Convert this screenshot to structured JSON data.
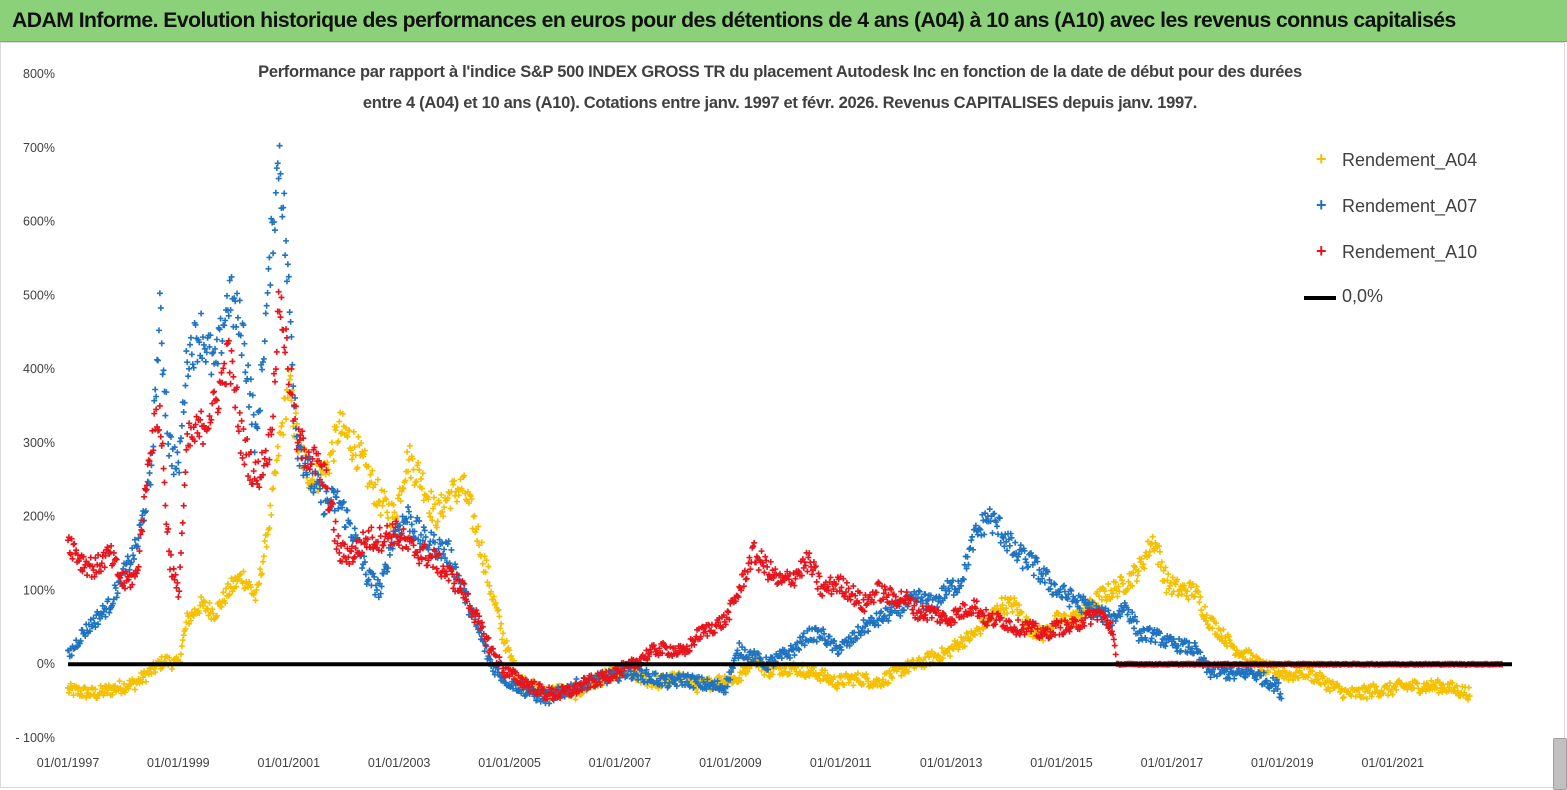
{
  "banner": {
    "title": "ADAM Informe. Evolution historique des performances en euros pour des détentions de 4 ans (A04) à 10 ans (A10) avec les revenus connus capitalisés"
  },
  "colors": {
    "banner_bg": "#8bd17a",
    "series_a04": "#f5c000",
    "series_a07": "#1f73c0",
    "series_a10": "#e8141c",
    "zero_line": "#000000"
  },
  "chart_data": {
    "type": "scatter",
    "title": "Performance par rapport à l'indice S&P 500 INDEX GROSS TR  du placement Autodesk Inc en fonction de la date de début pour des durées",
    "subtitle": "entre 4 (A04) et 10 ans (A10).  Cotations entre janv. 1997 et févr. 2026. Revenus  CAPITALISES depuis janv. 1997.",
    "xlabel": "",
    "ylabel": "",
    "x_range": [
      "1997-01-01",
      "2023-03-01"
    ],
    "ylim": [
      -100,
      800
    ],
    "y_unit": "%",
    "grid": false,
    "legend_position": "top-right",
    "y_ticks": [
      "- 100%",
      "0%",
      "100%",
      "200%",
      "300%",
      "400%",
      "500%",
      "600%",
      "700%",
      "800%"
    ],
    "x_ticks": [
      "01/01/1997",
      "01/01/1999",
      "01/01/2001",
      "01/01/2003",
      "01/01/2005",
      "01/01/2007",
      "01/01/2009",
      "01/01/2011",
      "01/01/2013",
      "01/01/2015",
      "01/01/2017",
      "01/01/2019",
      "01/01/2021"
    ],
    "series": [
      {
        "name": "Rendement_A04",
        "marker": "+",
        "x": [
          "1997-01-01",
          "1997-07-01",
          "1998-01-01",
          "1998-04-01",
          "1998-07-01",
          "1998-10-01",
          "1999-01-01",
          "1999-03-01",
          "1999-06-01",
          "1999-09-01",
          "1999-12-01",
          "2000-03-01",
          "2000-06-01",
          "2000-09-01",
          "2000-11-01",
          "2001-01-01",
          "2001-03-01",
          "2001-06-01",
          "2001-09-01",
          "2001-12-01",
          "2002-03-01",
          "2002-06-01",
          "2002-09-01",
          "2002-12-01",
          "2003-03-01",
          "2003-06-01",
          "2003-09-01",
          "2003-12-01",
          "2004-03-01",
          "2004-06-01",
          "2004-09-01",
          "2004-12-01",
          "2005-03-01",
          "2005-06-01",
          "2005-09-01",
          "2005-12-01",
          "2006-03-01",
          "2006-06-01",
          "2006-09-01",
          "2006-12-01",
          "2007-03-01",
          "2007-06-01",
          "2007-09-01",
          "2007-12-01",
          "2008-03-01",
          "2008-06-01",
          "2008-09-01",
          "2008-12-01",
          "2009-03-01",
          "2009-06-01",
          "2009-09-01",
          "2009-12-01",
          "2010-03-01",
          "2010-06-01",
          "2010-09-01",
          "2010-12-01",
          "2011-03-01",
          "2011-06-01",
          "2011-09-01",
          "2011-12-01",
          "2012-03-01",
          "2012-06-01",
          "2012-09-01",
          "2012-12-01",
          "2013-03-01",
          "2013-06-01",
          "2013-09-01",
          "2013-12-01",
          "2014-03-01",
          "2014-06-01",
          "2014-09-01",
          "2014-12-01",
          "2015-03-01",
          "2015-06-01",
          "2015-09-01",
          "2015-12-01",
          "2016-03-01",
          "2016-06-01",
          "2016-09-01",
          "2016-12-01",
          "2017-03-01",
          "2017-06-01",
          "2017-09-01",
          "2017-12-01",
          "2018-03-01",
          "2018-06-01",
          "2018-09-01",
          "2018-12-01",
          "2019-03-01",
          "2019-06-01",
          "2019-09-01",
          "2019-12-01",
          "2020-03-01",
          "2020-06-01",
          "2020-09-01",
          "2020-12-01",
          "2021-03-01",
          "2021-06-01",
          "2021-09-01",
          "2021-12-01",
          "2022-03-01",
          "2022-06-01"
        ],
        "y": [
          -35,
          -40,
          -30,
          -25,
          -10,
          5,
          0,
          60,
          80,
          70,
          100,
          120,
          90,
          200,
          300,
          380,
          300,
          250,
          260,
          320,
          300,
          260,
          220,
          200,
          280,
          250,
          200,
          230,
          240,
          180,
          100,
          30,
          -20,
          -30,
          -40,
          -35,
          -40,
          -30,
          -20,
          -10,
          -10,
          -20,
          -25,
          -20,
          -20,
          -30,
          -25,
          -20,
          -20,
          10,
          -10,
          -5,
          -5,
          -10,
          -15,
          -25,
          -20,
          -20,
          -25,
          -15,
          -5,
          0,
          10,
          15,
          30,
          40,
          60,
          80,
          80,
          50,
          40,
          60,
          60,
          70,
          90,
          100,
          110,
          130,
          170,
          110,
          100,
          100,
          60,
          40,
          20,
          10,
          -5,
          -10,
          -15,
          -10,
          -20,
          -30,
          -40,
          -40,
          -35,
          -35,
          -30,
          -30,
          -30,
          -30,
          -35,
          -40
        ]
      },
      {
        "name": "Rendement_A07",
        "marker": "+",
        "x": [
          "1997-01-01",
          "1997-04-01",
          "1997-07-01",
          "1997-10-01",
          "1998-01-01",
          "1998-04-01",
          "1998-07-01",
          "1998-09-01",
          "1998-11-01",
          "1999-01-01",
          "1999-03-01",
          "1999-06-01",
          "1999-09-01",
          "1999-12-01",
          "2000-03-01",
          "2000-06-01",
          "2000-09-01",
          "2000-11-01",
          "2001-01-01",
          "2001-03-01",
          "2001-06-01",
          "2001-09-01",
          "2001-12-01",
          "2002-03-01",
          "2002-06-01",
          "2002-09-01",
          "2002-12-01",
          "2003-03-01",
          "2003-06-01",
          "2003-09-01",
          "2003-12-01",
          "2004-03-01",
          "2004-06-01",
          "2004-09-01",
          "2004-12-01",
          "2005-03-01",
          "2005-06-01",
          "2005-09-01",
          "2005-12-01",
          "2006-03-01",
          "2006-06-01",
          "2006-09-01",
          "2006-12-01",
          "2007-03-01",
          "2007-06-01",
          "2007-09-01",
          "2007-12-01",
          "2008-03-01",
          "2008-06-01",
          "2008-09-01",
          "2008-12-01",
          "2009-03-01",
          "2009-06-01",
          "2009-09-01",
          "2009-12-01",
          "2010-03-01",
          "2010-06-01",
          "2010-09-01",
          "2010-12-01",
          "2011-03-01",
          "2011-06-01",
          "2011-09-01",
          "2011-12-01",
          "2012-03-01",
          "2012-06-01",
          "2012-09-01",
          "2012-12-01",
          "2013-03-01",
          "2013-06-01",
          "2013-09-01",
          "2013-12-01",
          "2014-03-01",
          "2014-06-01",
          "2014-09-01",
          "2014-12-01",
          "2015-03-01",
          "2015-06-01",
          "2015-09-01",
          "2015-12-01",
          "2016-03-01",
          "2016-06-01",
          "2016-09-01",
          "2016-12-01",
          "2017-03-01",
          "2017-06-01",
          "2017-09-01",
          "2017-12-01",
          "2018-03-01",
          "2018-06-01",
          "2018-09-01",
          "2018-12-01",
          "2019-01-01"
        ],
        "y": [
          10,
          40,
          60,
          80,
          120,
          160,
          250,
          470,
          300,
          260,
          420,
          450,
          400,
          500,
          450,
          300,
          550,
          700,
          500,
          300,
          250,
          220,
          220,
          180,
          120,
          100,
          180,
          200,
          170,
          160,
          150,
          100,
          50,
          0,
          -20,
          -30,
          -40,
          -45,
          -40,
          -30,
          -25,
          -20,
          -15,
          -10,
          -15,
          -20,
          -25,
          -20,
          -25,
          -30,
          -30,
          20,
          10,
          0,
          10,
          20,
          40,
          40,
          20,
          30,
          50,
          60,
          70,
          80,
          90,
          80,
          100,
          110,
          170,
          200,
          180,
          150,
          140,
          120,
          100,
          90,
          80,
          70,
          60,
          80,
          40,
          40,
          30,
          25,
          20,
          -10,
          -10,
          -15,
          -10,
          -20,
          -30,
          -45
        ]
      },
      {
        "name": "Rendement_A10",
        "marker": "+",
        "x": [
          "1997-01-01",
          "1997-04-01",
          "1997-07-01",
          "1997-10-01",
          "1998-01-01",
          "1998-04-01",
          "1998-07-01",
          "1998-09-01",
          "1998-11-01",
          "1999-01-01",
          "1999-03-01",
          "1999-06-01",
          "1999-09-01",
          "1999-12-01",
          "2000-03-01",
          "2000-06-01",
          "2000-09-01",
          "2000-11-01",
          "2001-01-01",
          "2001-03-01",
          "2001-06-01",
          "2001-09-01",
          "2001-12-01",
          "2002-03-01",
          "2002-06-01",
          "2002-09-01",
          "2002-12-01",
          "2003-03-01",
          "2003-06-01",
          "2003-09-01",
          "2003-12-01",
          "2004-03-01",
          "2004-06-01",
          "2004-09-01",
          "2004-12-01",
          "2005-03-01",
          "2005-06-01",
          "2005-09-01",
          "2005-12-01",
          "2006-03-01",
          "2006-06-01",
          "2006-09-01",
          "2006-12-01",
          "2007-03-01",
          "2007-06-01",
          "2007-09-01",
          "2007-12-01",
          "2008-03-01",
          "2008-06-01",
          "2008-09-01",
          "2008-12-01",
          "2009-03-01",
          "2009-06-01",
          "2009-09-01",
          "2009-12-01",
          "2010-03-01",
          "2010-06-01",
          "2010-09-01",
          "2010-12-01",
          "2011-03-01",
          "2011-06-01",
          "2011-09-01",
          "2011-12-01",
          "2012-03-01",
          "2012-06-01",
          "2012-09-01",
          "2012-12-01",
          "2013-03-01",
          "2013-06-01",
          "2013-09-01",
          "2013-12-01",
          "2014-03-01",
          "2014-06-01",
          "2014-09-01",
          "2014-12-01",
          "2015-03-01",
          "2015-06-01",
          "2015-09-01",
          "2015-12-01",
          "2016-01-01",
          "2016-06-01",
          "2017-01-01",
          "2018-01-01",
          "2019-01-01",
          "2020-01-01",
          "2021-01-01",
          "2022-01-01",
          "2023-01-01"
        ],
        "y": [
          170,
          140,
          130,
          150,
          110,
          120,
          300,
          340,
          150,
          90,
          300,
          320,
          350,
          420,
          300,
          250,
          300,
          500,
          400,
          300,
          280,
          250,
          150,
          150,
          170,
          170,
          180,
          160,
          150,
          140,
          120,
          100,
          60,
          20,
          -10,
          -20,
          -30,
          -40,
          -40,
          -35,
          -25,
          -20,
          -10,
          -5,
          10,
          20,
          20,
          15,
          40,
          50,
          60,
          100,
          150,
          130,
          110,
          120,
          140,
          100,
          110,
          100,
          80,
          100,
          90,
          90,
          70,
          70,
          60,
          70,
          80,
          60,
          60,
          50,
          50,
          40,
          50,
          50,
          60,
          70,
          50,
          0,
          0,
          0,
          0,
          0,
          0,
          0,
          0,
          0
        ]
      },
      {
        "name": "0,0%",
        "marker": "line",
        "x": [
          "1997-01-01",
          "2023-03-01"
        ],
        "y": [
          0,
          0
        ]
      }
    ]
  }
}
